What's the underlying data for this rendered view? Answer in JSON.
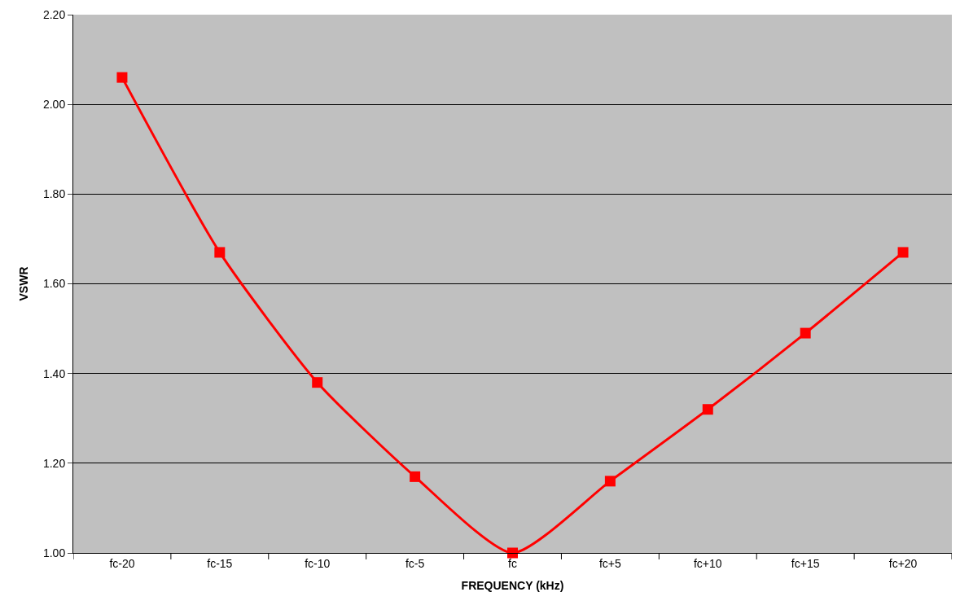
{
  "chart_data": {
    "type": "line",
    "xlabel": "FREQUENCY (kHz)",
    "ylabel": "VSWR",
    "categories": [
      "fc-20",
      "fc-15",
      "fc-10",
      "fc-5",
      "fc",
      "fc+5",
      "fc+10",
      "fc+15",
      "fc+20"
    ],
    "series": [
      {
        "color": "#ff0000",
        "values": [
          2.06,
          1.67,
          1.38,
          1.17,
          1.0,
          1.16,
          1.32,
          1.49,
          1.67
        ]
      }
    ],
    "ylim": [
      1.0,
      2.2
    ],
    "yticks": [
      {
        "value": 1.0,
        "label": "1.00"
      },
      {
        "value": 1.2,
        "label": "1.20"
      },
      {
        "value": 1.4,
        "label": "1.40"
      },
      {
        "value": 1.6,
        "label": "1.60"
      },
      {
        "value": 1.8,
        "label": "1.80"
      },
      {
        "value": 2.0,
        "label": "2.00"
      },
      {
        "value": 2.2,
        "label": "2.20"
      }
    ],
    "grid": "y",
    "legend": false,
    "marker": "square",
    "line_style": "solid"
  }
}
